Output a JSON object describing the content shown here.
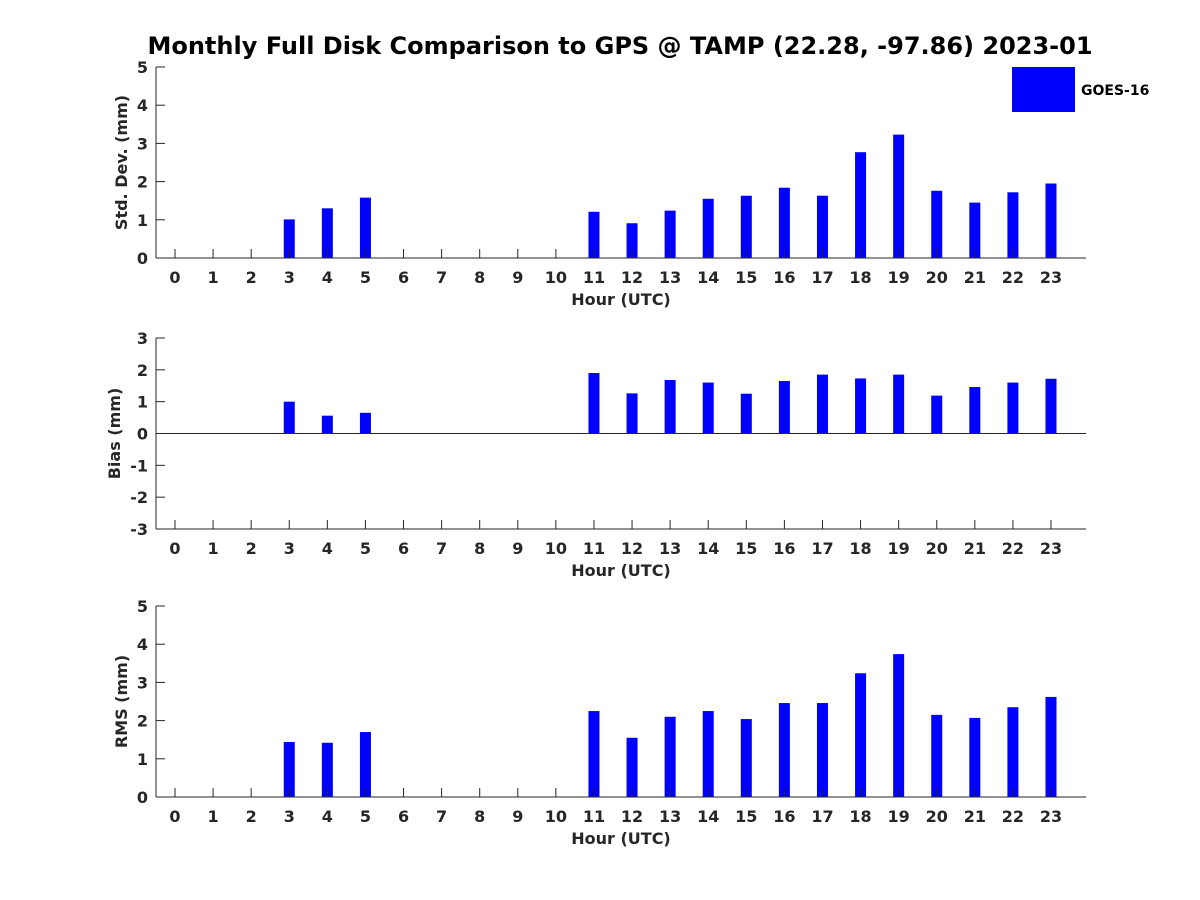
{
  "chart_data": {
    "type": "bar",
    "title": "Monthly Full Disk Comparison to GPS @ TAMP (22.28, -97.86) 2023-01",
    "legend": {
      "label": "GOES-16",
      "color": "#0000ff",
      "placement": "top-right"
    },
    "categories": [
      "0",
      "1",
      "2",
      "3",
      "4",
      "5",
      "6",
      "7",
      "8",
      "9",
      "10",
      "11",
      "12",
      "13",
      "14",
      "15",
      "16",
      "17",
      "18",
      "19",
      "20",
      "21",
      "22",
      "23"
    ],
    "panels": [
      {
        "id": "std",
        "ylabel": "Std. Dev. (mm)",
        "xlabel": "Hour (UTC)",
        "ylim": [
          0,
          5
        ],
        "yticks": [
          "0",
          "1",
          "2",
          "3",
          "4",
          "5"
        ],
        "values": [
          null,
          null,
          null,
          1.01,
          1.3,
          1.58,
          null,
          null,
          null,
          null,
          null,
          1.21,
          0.91,
          1.24,
          1.55,
          1.63,
          1.84,
          1.63,
          2.77,
          3.23,
          1.76,
          1.45,
          1.72,
          1.95
        ]
      },
      {
        "id": "bias",
        "ylabel": "Bias (mm)",
        "xlabel": "Hour (UTC)",
        "ylim": [
          -3,
          3
        ],
        "yticks": [
          "-3",
          "-2",
          "-1",
          "0",
          "1",
          "2",
          "3"
        ],
        "values": [
          null,
          null,
          null,
          1.0,
          0.56,
          0.65,
          null,
          null,
          null,
          null,
          null,
          1.9,
          1.26,
          1.68,
          1.6,
          1.25,
          1.65,
          1.85,
          1.73,
          1.85,
          1.19,
          1.46,
          1.6,
          1.72
        ]
      },
      {
        "id": "rms",
        "ylabel": "RMS (mm)",
        "xlabel": "Hour (UTC)",
        "ylim": [
          0,
          5
        ],
        "yticks": [
          "0",
          "1",
          "2",
          "3",
          "4",
          "5"
        ],
        "values": [
          null,
          null,
          null,
          1.44,
          1.42,
          1.7,
          null,
          null,
          null,
          null,
          null,
          2.25,
          1.55,
          2.1,
          2.25,
          2.04,
          2.46,
          2.46,
          3.24,
          3.74,
          2.15,
          2.07,
          2.35,
          2.62
        ]
      }
    ]
  }
}
